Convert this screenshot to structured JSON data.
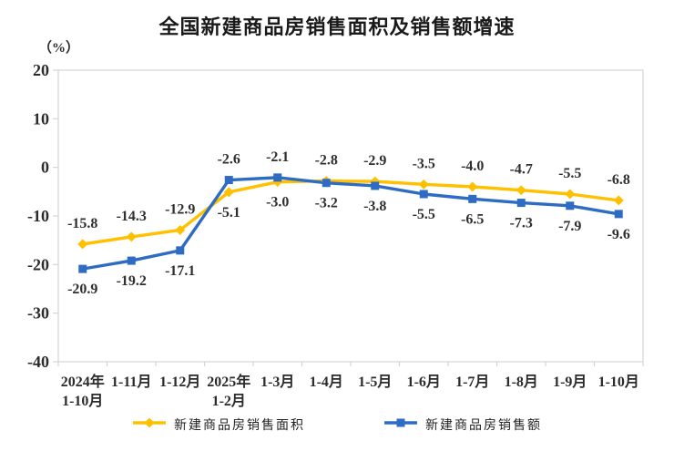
{
  "page": {
    "background": "#ffffff"
  },
  "chart_data": {
    "type": "line",
    "title": "全国新建商品房销售面积及销售额增速",
    "unit": "（%）",
    "categories": [
      [
        "2024年",
        "1-10月"
      ],
      [
        "1-11月"
      ],
      [
        "1-12月"
      ],
      [
        "2025年",
        "1-2月"
      ],
      [
        "1-3月"
      ],
      [
        "1-4月"
      ],
      [
        "1-5月"
      ],
      [
        "1-6月"
      ],
      [
        "1-7月"
      ],
      [
        "1-8月"
      ],
      [
        "1-9月"
      ],
      [
        "1-10月"
      ]
    ],
    "ylim": [
      -40,
      20
    ],
    "yticks": [
      20,
      10,
      0,
      -10,
      -20,
      -30,
      -40
    ],
    "grid": false,
    "data_labels": true,
    "legend_position": "bottom",
    "axis_color": "#d4d4d4",
    "label_color": "#2b2b2b",
    "series": [
      {
        "name": "新建商品房销售面积",
        "color": "#FFC000",
        "marker": "diamond",
        "values": [
          -15.8,
          -14.3,
          -12.9,
          -5.1,
          -3.0,
          -2.8,
          -2.9,
          -3.5,
          -4.0,
          -4.7,
          -5.5,
          -6.8
        ],
        "label_sides": [
          "above",
          "above",
          "above",
          "below",
          "below",
          "above",
          "above",
          "above",
          "above",
          "above",
          "above",
          "above"
        ]
      },
      {
        "name": "新建商品房销售额",
        "color": "#2E6BC2",
        "marker": "square",
        "values": [
          -20.9,
          -19.2,
          -17.1,
          -2.6,
          -2.1,
          -3.2,
          -3.8,
          -5.5,
          -6.5,
          -7.3,
          -7.9,
          -9.6
        ],
        "label_sides": [
          "below",
          "below",
          "below",
          "above",
          "above",
          "below",
          "below",
          "below",
          "below",
          "below",
          "below",
          "below"
        ]
      }
    ]
  }
}
